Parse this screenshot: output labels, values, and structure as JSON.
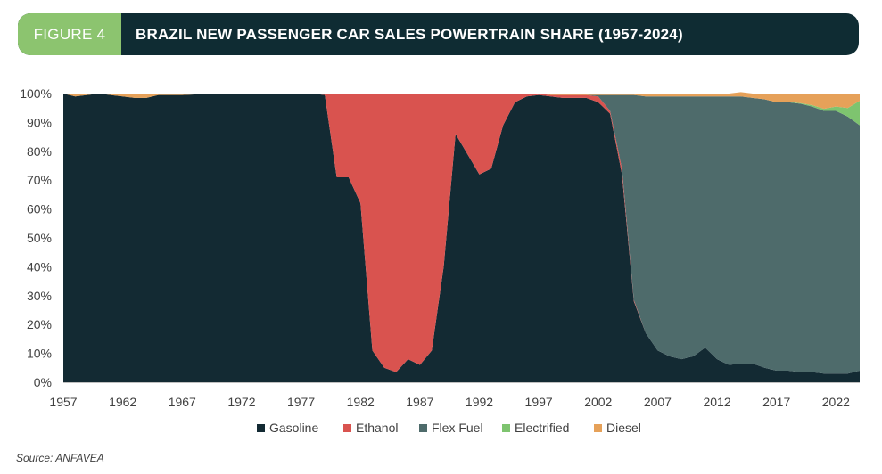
{
  "header": {
    "figure_label": "FIGURE 4",
    "title": "BRAZIL NEW PASSENGER CAR SALES POWERTRAIN SHARE (1957-2024)"
  },
  "source": "Source: ANFAVEA",
  "colors": {
    "header_bg": "#0f2c33",
    "badge_bg": "#8cc46f"
  },
  "chart_data": {
    "type": "area",
    "stacked": true,
    "title": "BRAZIL NEW PASSENGER CAR SALES POWERTRAIN SHARE (1957-2024)",
    "xlabel": "",
    "ylabel": "",
    "xlim": [
      1957,
      2024
    ],
    "ylim": [
      0,
      100
    ],
    "x_ticks": [
      1957,
      1962,
      1967,
      1972,
      1977,
      1982,
      1987,
      1992,
      1997,
      2002,
      2007,
      2012,
      2017,
      2022
    ],
    "y_ticks": [
      0,
      10,
      20,
      30,
      40,
      50,
      60,
      70,
      80,
      90,
      100
    ],
    "y_tick_suffix": "%",
    "legend_position": "bottom",
    "x": [
      1957,
      1958,
      1959,
      1960,
      1961,
      1962,
      1963,
      1964,
      1965,
      1966,
      1967,
      1968,
      1969,
      1970,
      1971,
      1972,
      1973,
      1974,
      1975,
      1976,
      1977,
      1978,
      1979,
      1980,
      1981,
      1982,
      1983,
      1984,
      1985,
      1986,
      1987,
      1988,
      1989,
      1990,
      1991,
      1992,
      1993,
      1994,
      1995,
      1996,
      1997,
      1998,
      1999,
      2000,
      2001,
      2002,
      2003,
      2004,
      2005,
      2006,
      2007,
      2008,
      2009,
      2010,
      2011,
      2012,
      2013,
      2014,
      2015,
      2016,
      2017,
      2018,
      2019,
      2020,
      2021,
      2022,
      2023,
      2024
    ],
    "series": [
      {
        "name": "Gasoline",
        "color": "#132a33",
        "values": [
          100,
          99,
          99.5,
          100,
          99.5,
          99,
          98.5,
          98.5,
          99.5,
          99.5,
          99.5,
          99.7,
          99.7,
          100,
          100,
          100,
          100,
          100,
          100,
          100,
          100,
          100,
          99.5,
          71,
          71,
          62,
          11,
          5,
          3.5,
          8,
          6,
          11,
          40,
          86,
          79,
          72,
          74,
          89,
          97,
          99,
          99.5,
          99,
          98.5,
          98.5,
          98.5,
          97,
          93,
          72,
          28,
          17,
          11,
          9,
          8,
          9,
          12,
          8,
          6,
          6.5,
          6.5,
          5,
          4,
          4,
          3.5,
          3.5,
          3,
          3,
          3,
          4
        ]
      },
      {
        "name": "Ethanol",
        "color": "#d9534f",
        "values": [
          0,
          0,
          0,
          0,
          0,
          0,
          0,
          0,
          0,
          0,
          0,
          0,
          0,
          0,
          0,
          0,
          0,
          0,
          0,
          0,
          0,
          0,
          0.5,
          29,
          29,
          38,
          89,
          95,
          96.5,
          92,
          94,
          89,
          60,
          14,
          21,
          28,
          26,
          11,
          3,
          1,
          0.5,
          0.5,
          1,
          1,
          1,
          2,
          1,
          2,
          0.5,
          0,
          0,
          0,
          0,
          0,
          0,
          0,
          0,
          0,
          0,
          0,
          0,
          0,
          0,
          0,
          0,
          0,
          0,
          0
        ]
      },
      {
        "name": "Flex Fuel",
        "color": "#4e6b6b",
        "values": [
          0,
          0,
          0,
          0,
          0,
          0,
          0,
          0,
          0,
          0,
          0,
          0,
          0,
          0,
          0,
          0,
          0,
          0,
          0,
          0,
          0,
          0,
          0,
          0,
          0,
          0,
          0,
          0,
          0,
          0,
          0,
          0,
          0,
          0,
          0,
          0,
          0,
          0,
          0,
          0,
          0,
          0,
          0,
          0,
          0,
          0.5,
          5.5,
          25.5,
          71,
          82,
          88,
          90,
          91,
          90,
          87,
          91,
          93,
          92.5,
          92,
          93,
          93,
          93,
          93,
          92,
          91,
          91,
          89,
          85
        ]
      },
      {
        "name": "Electrified",
        "color": "#7ec46f",
        "values": [
          0,
          0,
          0,
          0,
          0,
          0,
          0,
          0,
          0,
          0,
          0,
          0,
          0,
          0,
          0,
          0,
          0,
          0,
          0,
          0,
          0,
          0,
          0,
          0,
          0,
          0,
          0,
          0,
          0,
          0,
          0,
          0,
          0,
          0,
          0,
          0,
          0,
          0,
          0,
          0,
          0,
          0,
          0,
          0,
          0,
          0,
          0,
          0,
          0,
          0,
          0,
          0,
          0,
          0,
          0,
          0,
          0,
          0,
          0,
          0,
          0,
          0.1,
          0.2,
          0.5,
          0.7,
          1.5,
          3,
          8.5
        ]
      },
      {
        "name": "Diesel",
        "color": "#e6a159",
        "values": [
          0,
          1,
          0.5,
          0,
          0.5,
          1,
          1.5,
          1.5,
          0.5,
          0.5,
          0.5,
          0.3,
          0.3,
          0,
          0,
          0,
          0,
          0,
          0,
          0,
          0,
          0,
          0,
          0,
          0,
          0,
          0,
          0,
          0,
          0,
          0,
          0,
          0,
          0,
          0,
          0,
          0,
          0,
          0,
          0,
          0,
          0.5,
          0.5,
          0.5,
          0.5,
          0.5,
          0.5,
          0.5,
          0.5,
          1,
          1,
          1,
          1,
          1,
          1,
          1,
          1,
          1.5,
          1.5,
          2,
          3,
          2.9,
          3.3,
          4,
          5.3,
          4.5,
          5,
          2.5
        ]
      }
    ]
  }
}
